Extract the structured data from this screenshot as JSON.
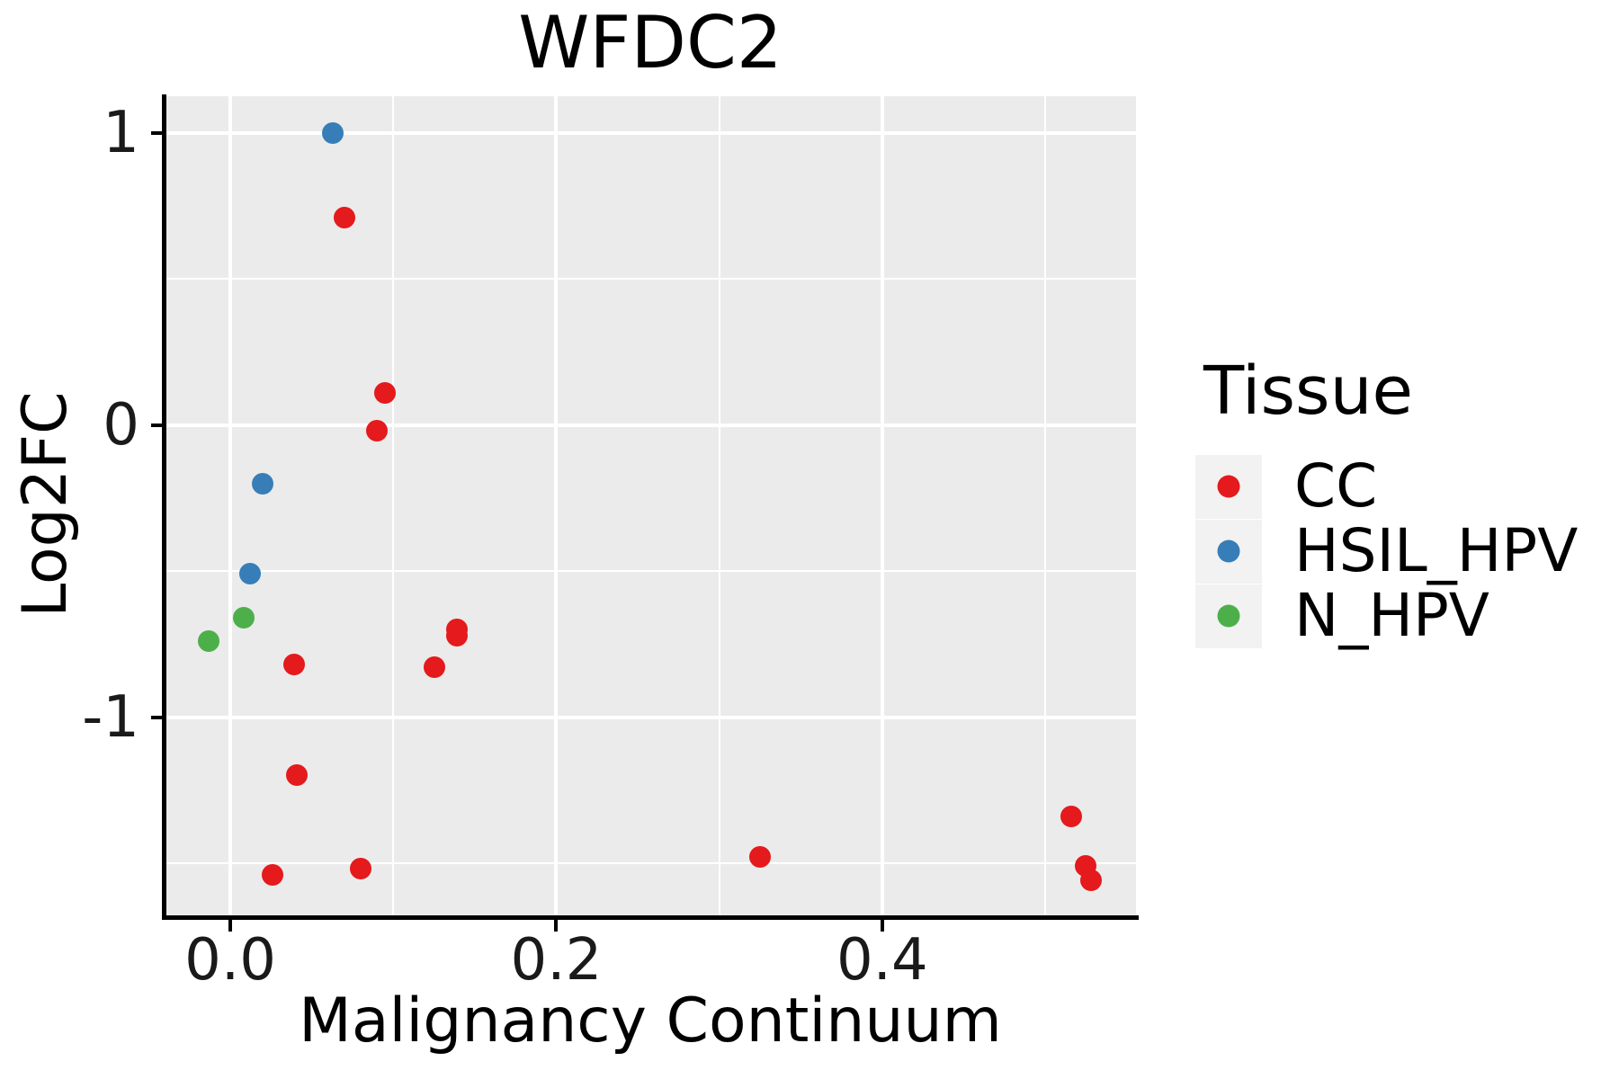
{
  "title": "WFDC2",
  "x_axis": {
    "label": "Malignancy Continuum",
    "tick_labels": [
      "0.0",
      "0.2",
      "0.4"
    ]
  },
  "y_axis": {
    "label": "Log2FC",
    "tick_labels": [
      "1",
      "0",
      "-1"
    ]
  },
  "legend": {
    "title": "Tissue",
    "items": [
      {
        "label": "CC",
        "color": "#E41A1C"
      },
      {
        "label": "HSIL_HPV",
        "color": "#377EB8"
      },
      {
        "label": "N_HPV",
        "color": "#4DAF4A"
      }
    ]
  },
  "colors": {
    "panel_background": "#EBEBEB",
    "gridline": "#FFFFFF",
    "axis_line": "#000000",
    "legend_key_background": "#F2F2F2",
    "cc_red": "#E41A1C",
    "hsil_blue": "#377EB8",
    "nhpv_green": "#4DAF4A"
  },
  "chart_data": {
    "type": "scatter",
    "title": "WFDC2",
    "xlabel": "Malignancy Continuum",
    "ylabel": "Log2FC",
    "xlim": [
      -0.0403,
      0.5557
    ],
    "ylim": [
      -1.685,
      1.126
    ],
    "x_major_ticks": [
      0.0,
      0.2,
      0.4
    ],
    "x_minor_ticks": [
      0.1,
      0.3,
      0.5
    ],
    "y_major_ticks": [
      1,
      0,
      -1
    ],
    "y_minor_ticks": [
      0.5,
      -0.5,
      -1.5
    ],
    "grid": true,
    "legend_position": "right",
    "legend_title": "Tissue",
    "series": [
      {
        "name": "CC",
        "color": "#E41A1C",
        "points": [
          [
            0.07,
            0.71
          ],
          [
            0.095,
            0.11
          ],
          [
            0.09,
            -0.02
          ],
          [
            0.039,
            -0.82
          ],
          [
            0.139,
            -0.7
          ],
          [
            0.139,
            -0.72
          ],
          [
            0.125,
            -0.83
          ],
          [
            0.041,
            -1.2
          ],
          [
            0.026,
            -1.54
          ],
          [
            0.08,
            -1.52
          ],
          [
            0.325,
            -1.48
          ],
          [
            0.516,
            -1.34
          ],
          [
            0.525,
            -1.51
          ],
          [
            0.528,
            -1.56
          ]
        ]
      },
      {
        "name": "HSIL_HPV",
        "color": "#377EB8",
        "points": [
          [
            0.063,
            1.0
          ],
          [
            0.02,
            -0.2
          ],
          [
            0.012,
            -0.51
          ]
        ]
      },
      {
        "name": "N_HPV",
        "color": "#4DAF4A",
        "points": [
          [
            0.008,
            -0.66
          ],
          [
            -0.013,
            -0.74
          ]
        ]
      }
    ]
  }
}
